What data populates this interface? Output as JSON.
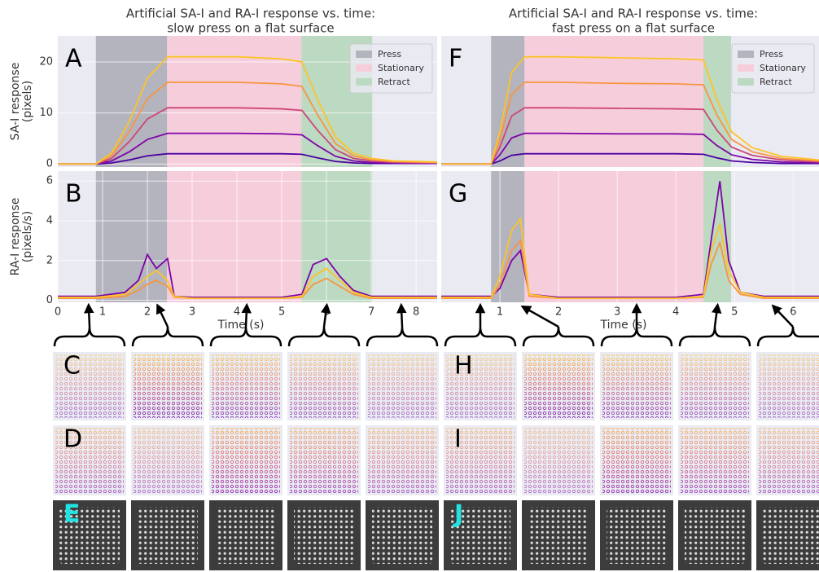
{
  "chart_data": [
    {
      "type": "line",
      "panel_label": "A",
      "title": [
        "Artificial SA-I and RA-I response vs. time:",
        "slow press on a flat surface"
      ],
      "ylabel": [
        "SA-I response",
        "(pixels)"
      ],
      "xlim": [
        0,
        8.47
      ],
      "ylim": [
        -0.6,
        25.1
      ],
      "yticks": [
        0,
        10,
        20
      ],
      "grid": true,
      "legend": "upper right",
      "phases": [
        {
          "name": "Press",
          "color": "#b4b4be",
          "range": [
            0.85,
            2.44
          ]
        },
        {
          "name": "Stationary",
          "color": "#f6cedb",
          "range": [
            2.44,
            5.44
          ]
        },
        {
          "name": "Retract",
          "color": "#bcd9c1",
          "range": [
            5.44,
            7.02
          ]
        }
      ],
      "x": [
        0,
        0.85,
        1.2,
        1.6,
        2.0,
        2.45,
        3,
        4,
        5,
        5.45,
        5.8,
        6.2,
        6.6,
        7.0,
        7.5,
        8.47
      ],
      "series": [
        {
          "color": "#4c02a1",
          "values": [
            0,
            0,
            0.2,
            0.8,
            1.6,
            2,
            2,
            2,
            2,
            1.9,
            1.2,
            0.5,
            0.2,
            0.1,
            0.1,
            0.1
          ]
        },
        {
          "color": "#7e03a8",
          "values": [
            0,
            0,
            0.6,
            2.4,
            4.8,
            6,
            6,
            6,
            5.9,
            5.7,
            3.6,
            1.5,
            0.6,
            0.3,
            0.2,
            0.1
          ]
        },
        {
          "color": "#cc4778",
          "values": [
            0,
            0,
            1.1,
            4.4,
            8.8,
            11,
            11,
            11,
            10.8,
            10.5,
            6.6,
            2.8,
            1.1,
            0.6,
            0.3,
            0.2
          ]
        },
        {
          "color": "#f89540",
          "values": [
            0,
            0,
            1.6,
            6.4,
            12.8,
            16,
            16,
            16,
            15.7,
            15.2,
            9.6,
            4,
            1.6,
            0.8,
            0.5,
            0.3
          ]
        },
        {
          "color": "#fdc328",
          "values": [
            0,
            0,
            2.1,
            8.4,
            16.8,
            21,
            21,
            21,
            20.6,
            20,
            12.6,
            5.3,
            2.1,
            1.1,
            0.6,
            0.4
          ]
        }
      ]
    },
    {
      "type": "line",
      "panel_label": "B",
      "ylabel": [
        "RA-I response",
        "(pixels/s)"
      ],
      "xlabel": "Time (s)",
      "xlim": [
        0,
        8.47
      ],
      "ylim": [
        -0.1,
        6.5
      ],
      "xticks": [
        0,
        1,
        2,
        3,
        4,
        5,
        6,
        7,
        8
      ],
      "yticks": [
        0,
        2,
        4,
        6
      ],
      "grid": true,
      "phases": [
        {
          "color": "#b4b4be",
          "range": [
            0.85,
            2.44
          ]
        },
        {
          "color": "#f6cedb",
          "range": [
            2.44,
            5.44
          ]
        },
        {
          "color": "#bcd9c1",
          "range": [
            5.44,
            7.02
          ]
        }
      ],
      "x": [
        0,
        0.85,
        1.5,
        1.8,
        2.0,
        2.2,
        2.45,
        2.6,
        3,
        4,
        5,
        5.45,
        5.7,
        6.0,
        6.3,
        6.6,
        7,
        8.47
      ],
      "series": [
        {
          "color": "#7e03a8",
          "values": [
            0.2,
            0.2,
            0.4,
            1.0,
            2.3,
            1.6,
            2.1,
            0.2,
            0.15,
            0.15,
            0.15,
            0.3,
            1.8,
            2.1,
            1.2,
            0.5,
            0.2,
            0.2
          ]
        },
        {
          "color": "#f89540",
          "values": [
            0.1,
            0.1,
            0.2,
            0.5,
            0.8,
            1.0,
            0.7,
            0.15,
            0.1,
            0.1,
            0.1,
            0.15,
            0.8,
            1.1,
            0.7,
            0.3,
            0.1,
            0.1
          ]
        },
        {
          "color": "#fdc328",
          "values": [
            0.15,
            0.15,
            0.3,
            0.8,
            1.2,
            1.5,
            1.0,
            0.2,
            0.1,
            0.1,
            0.1,
            0.2,
            1.2,
            1.6,
            1.0,
            0.4,
            0.15,
            0.15
          ]
        }
      ]
    },
    {
      "type": "line",
      "panel_label": "F",
      "title": [
        "Artificial SA-I and RA-I response vs. time:",
        "fast press on a flat surface"
      ],
      "xlim": [
        0,
        6.44
      ],
      "ylim": [
        -0.6,
        25.1
      ],
      "grid": true,
      "legend": "upper right",
      "phases": [
        {
          "name": "Press",
          "color": "#b4b4be",
          "range": [
            0.85,
            1.42
          ]
        },
        {
          "name": "Stationary",
          "color": "#f6cedb",
          "range": [
            1.42,
            4.47
          ]
        },
        {
          "name": "Retract",
          "color": "#bcd9c1",
          "range": [
            4.47,
            4.94
          ]
        }
      ],
      "x": [
        0,
        0.85,
        1.0,
        1.2,
        1.42,
        2,
        3,
        4,
        4.47,
        4.7,
        4.95,
        5.3,
        5.8,
        6.44
      ],
      "series": [
        {
          "color": "#4c02a1",
          "values": [
            0,
            0,
            0.6,
            1.7,
            2,
            2,
            2,
            2,
            1.9,
            1.2,
            0.6,
            0.3,
            0.1,
            0.1
          ]
        },
        {
          "color": "#7e03a8",
          "values": [
            0,
            0,
            1.8,
            5.1,
            6,
            6,
            5.9,
            5.9,
            5.8,
            3.6,
            1.8,
            0.9,
            0.4,
            0.2
          ]
        },
        {
          "color": "#cc4778",
          "values": [
            0,
            0,
            3.3,
            9.4,
            11,
            11,
            10.9,
            10.8,
            10.7,
            6.6,
            3.3,
            1.7,
            0.8,
            0.4
          ]
        },
        {
          "color": "#f89540",
          "values": [
            0,
            0,
            4.8,
            13.6,
            16,
            16,
            15.8,
            15.7,
            15.5,
            9.6,
            4.8,
            2.4,
            1.1,
            0.6
          ]
        },
        {
          "color": "#fdc328",
          "values": [
            0,
            0,
            6.3,
            17.9,
            21,
            21,
            20.8,
            20.6,
            20.4,
            12.6,
            6.3,
            3.2,
            1.5,
            0.8
          ]
        }
      ]
    },
    {
      "type": "line",
      "panel_label": "G",
      "xlabel": "Time (s)",
      "xlim": [
        0,
        6.44
      ],
      "ylim": [
        -0.1,
        6.5
      ],
      "xticks": [
        1,
        2,
        3,
        4,
        5,
        6
      ],
      "grid": true,
      "phases": [
        {
          "color": "#b4b4be",
          "range": [
            0.85,
            1.42
          ]
        },
        {
          "color": "#f6cedb",
          "range": [
            1.42,
            4.47
          ]
        },
        {
          "color": "#bcd9c1",
          "range": [
            4.47,
            4.94
          ]
        }
      ],
      "x": [
        0,
        0.85,
        1.0,
        1.2,
        1.35,
        1.5,
        2,
        3,
        4,
        4.47,
        4.6,
        4.75,
        4.9,
        5.1,
        5.5,
        6.44
      ],
      "series": [
        {
          "color": "#7e03a8",
          "values": [
            0.2,
            0.2,
            0.6,
            2.0,
            2.5,
            0.3,
            0.15,
            0.15,
            0.15,
            0.3,
            3.0,
            6.0,
            2.0,
            0.4,
            0.2,
            0.2
          ]
        },
        {
          "color": "#f89540",
          "values": [
            0.1,
            0.1,
            0.8,
            2.5,
            3.0,
            0.2,
            0.1,
            0.1,
            0.1,
            0.15,
            1.8,
            2.9,
            1.0,
            0.3,
            0.1,
            0.1
          ]
        },
        {
          "color": "#fdc328",
          "values": [
            0.15,
            0.15,
            1.2,
            3.5,
            4.1,
            0.3,
            0.1,
            0.1,
            0.1,
            0.2,
            2.5,
            3.8,
            1.5,
            0.4,
            0.15,
            0.15
          ]
        }
      ]
    }
  ],
  "image_panels": {
    "slow": [
      "C",
      "D",
      "E"
    ],
    "fast": [
      "H",
      "I",
      "J"
    ]
  }
}
